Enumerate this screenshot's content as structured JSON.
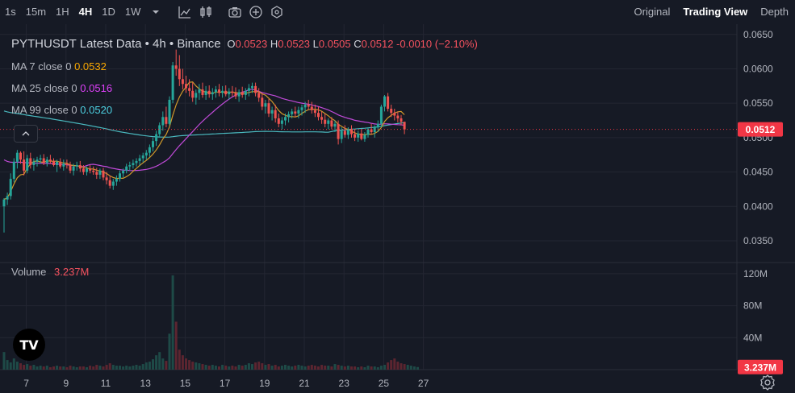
{
  "toolbar": {
    "timeframes": [
      "1s",
      "15m",
      "1H",
      "4H",
      "1D",
      "1W"
    ],
    "active_timeframe": "4H",
    "icons": [
      "chevron-down-icon",
      "line-chart-icon",
      "candlestick-icon",
      "camera-icon",
      "plus-circle-icon",
      "indicator-icon"
    ]
  },
  "views": {
    "tabs": [
      "Original",
      "Trading View",
      "Depth"
    ],
    "active": "Trading View"
  },
  "legend": {
    "symbol": "PYTHUSDT Latest Data",
    "interval": "4h",
    "exchange": "Binance",
    "open_label": "O",
    "open": "0.0523",
    "high_label": "H",
    "high": "0.0523",
    "low_label": "L",
    "low": "0.0505",
    "close_label": "C",
    "close": "0.0512",
    "change": "-0.0010 (−2.10%)",
    "ma": [
      {
        "label": "MA 7 close 0",
        "value": "0.0532",
        "color": "#f7a600"
      },
      {
        "label": "MA 25 close 0",
        "value": "0.0516",
        "color": "#e040fb"
      },
      {
        "label": "MA 99 close 0",
        "value": "0.0520",
        "color": "#4dd0e1"
      }
    ]
  },
  "volume_legend": {
    "label": "Volume",
    "value": "3.237M"
  },
  "colors": {
    "up": "#26a69a",
    "down": "#ef5350",
    "vol_up": "#1e4a47",
    "vol_down": "#5c2530",
    "price_tag": "#f23645",
    "grid": "#232632",
    "ma7": "#d19a2a",
    "ma25": "#c04ad8",
    "ma99": "#4ab9bf"
  },
  "chart_data": {
    "type": "candlestick",
    "price_axis_ticks": [
      "0.0650",
      "0.0600",
      "0.0550",
      "0.0500",
      "0.0450",
      "0.0400",
      "0.0350"
    ],
    "price_range": [
      0.0323,
      0.0665
    ],
    "volume_axis_ticks": [
      "120M",
      "80M",
      "40M"
    ],
    "volume_range": [
      0,
      130
    ],
    "x_ticks": [
      "7",
      "9",
      "11",
      "13",
      "15",
      "17",
      "19",
      "21",
      "23",
      "25",
      "27"
    ],
    "x_tick_index": [
      6,
      18,
      30,
      42,
      54,
      66,
      78,
      90,
      102,
      114,
      126
    ],
    "current_price_label": "0.0512",
    "current_volume_label": "3.237M",
    "current_price": 0.0512,
    "current_volume": 3.237,
    "candles_ohlc": [
      [
        0.04,
        0.0412,
        0.0362,
        0.041
      ],
      [
        0.041,
        0.042,
        0.0402,
        0.0415
      ],
      [
        0.0415,
        0.0448,
        0.041,
        0.044
      ],
      [
        0.044,
        0.047,
        0.0435,
        0.0465
      ],
      [
        0.0465,
        0.0482,
        0.0455,
        0.0478
      ],
      [
        0.0478,
        0.048,
        0.0462,
        0.0468
      ],
      [
        0.0468,
        0.048,
        0.0445,
        0.0452
      ],
      [
        0.0452,
        0.0475,
        0.0448,
        0.047
      ],
      [
        0.047,
        0.0478,
        0.0455,
        0.046
      ],
      [
        0.046,
        0.047,
        0.0452,
        0.0465
      ],
      [
        0.0465,
        0.0472,
        0.0458,
        0.0468
      ],
      [
        0.0468,
        0.0475,
        0.0462,
        0.047
      ],
      [
        0.047,
        0.0476,
        0.046,
        0.0463
      ],
      [
        0.0463,
        0.0472,
        0.0458,
        0.0468
      ],
      [
        0.0468,
        0.0475,
        0.0462,
        0.0466
      ],
      [
        0.0466,
        0.047,
        0.0458,
        0.046
      ],
      [
        0.046,
        0.0468,
        0.045,
        0.0465
      ],
      [
        0.0465,
        0.047,
        0.0455,
        0.0458
      ],
      [
        0.0458,
        0.0468,
        0.0452,
        0.0462
      ],
      [
        0.0462,
        0.0468,
        0.0455,
        0.046
      ],
      [
        0.046,
        0.0465,
        0.0448,
        0.0452
      ],
      [
        0.0452,
        0.0462,
        0.0445,
        0.0458
      ],
      [
        0.0458,
        0.0465,
        0.0452,
        0.046
      ],
      [
        0.046,
        0.0466,
        0.045,
        0.0455
      ],
      [
        0.0455,
        0.046,
        0.0446,
        0.045
      ],
      [
        0.045,
        0.0458,
        0.0445,
        0.0455
      ],
      [
        0.0455,
        0.046,
        0.0448,
        0.0452
      ],
      [
        0.0452,
        0.0458,
        0.0446,
        0.045
      ],
      [
        0.045,
        0.0456,
        0.044,
        0.0446
      ],
      [
        0.0446,
        0.0455,
        0.044,
        0.0452
      ],
      [
        0.0452,
        0.0456,
        0.0438,
        0.0442
      ],
      [
        0.0442,
        0.045,
        0.0432,
        0.0438
      ],
      [
        0.0438,
        0.0445,
        0.0426,
        0.043
      ],
      [
        0.043,
        0.044,
        0.0424,
        0.0436
      ],
      [
        0.0436,
        0.0445,
        0.043,
        0.044
      ],
      [
        0.044,
        0.0452,
        0.0436,
        0.0448
      ],
      [
        0.0448,
        0.0455,
        0.0442,
        0.0452
      ],
      [
        0.0452,
        0.0462,
        0.0448,
        0.0458
      ],
      [
        0.0458,
        0.0465,
        0.0452,
        0.046
      ],
      [
        0.046,
        0.0468,
        0.0455,
        0.0463
      ],
      [
        0.0463,
        0.047,
        0.0458,
        0.0466
      ],
      [
        0.0466,
        0.0475,
        0.046,
        0.047
      ],
      [
        0.047,
        0.0478,
        0.0464,
        0.0474
      ],
      [
        0.0474,
        0.0482,
        0.0468,
        0.0478
      ],
      [
        0.0478,
        0.049,
        0.0472,
        0.0486
      ],
      [
        0.0486,
        0.05,
        0.048,
        0.0495
      ],
      [
        0.0495,
        0.051,
        0.0488,
        0.0505
      ],
      [
        0.0505,
        0.0522,
        0.05,
        0.0518
      ],
      [
        0.0518,
        0.0538,
        0.051,
        0.053
      ],
      [
        0.053,
        0.0545,
        0.0515,
        0.052
      ],
      [
        0.052,
        0.056,
        0.0518,
        0.0555
      ],
      [
        0.0555,
        0.061,
        0.055,
        0.0605
      ],
      [
        0.0605,
        0.0628,
        0.059,
        0.06
      ],
      [
        0.06,
        0.062,
        0.0575,
        0.0585
      ],
      [
        0.0585,
        0.06,
        0.057,
        0.0578
      ],
      [
        0.0578,
        0.059,
        0.0565,
        0.0572
      ],
      [
        0.0572,
        0.0585,
        0.056,
        0.0568
      ],
      [
        0.0568,
        0.058,
        0.0552,
        0.0558
      ],
      [
        0.0558,
        0.057,
        0.0548,
        0.0565
      ],
      [
        0.0565,
        0.0578,
        0.0555,
        0.057
      ],
      [
        0.057,
        0.058,
        0.0558,
        0.0562
      ],
      [
        0.0562,
        0.0575,
        0.0555,
        0.0568
      ],
      [
        0.0568,
        0.0576,
        0.0558,
        0.0563
      ],
      [
        0.0563,
        0.0572,
        0.0555,
        0.0566
      ],
      [
        0.0566,
        0.0575,
        0.0558,
        0.057
      ],
      [
        0.057,
        0.0578,
        0.056,
        0.0565
      ],
      [
        0.0565,
        0.0575,
        0.0558,
        0.0568
      ],
      [
        0.0568,
        0.0576,
        0.056,
        0.0563
      ],
      [
        0.0563,
        0.0572,
        0.0555,
        0.0567
      ],
      [
        0.0567,
        0.0575,
        0.056,
        0.0565
      ],
      [
        0.0565,
        0.0573,
        0.0556,
        0.056
      ],
      [
        0.056,
        0.057,
        0.0552,
        0.0566
      ],
      [
        0.0566,
        0.0574,
        0.0558,
        0.0562
      ],
      [
        0.0562,
        0.0572,
        0.0555,
        0.0568
      ],
      [
        0.0568,
        0.0578,
        0.056,
        0.0572
      ],
      [
        0.0572,
        0.058,
        0.0565,
        0.0575
      ],
      [
        0.0575,
        0.058,
        0.056,
        0.0565
      ],
      [
        0.0565,
        0.0572,
        0.0552,
        0.0558
      ],
      [
        0.0558,
        0.0565,
        0.054,
        0.0545
      ],
      [
        0.0545,
        0.0555,
        0.0535,
        0.055
      ],
      [
        0.055,
        0.0556,
        0.053,
        0.0535
      ],
      [
        0.0535,
        0.0545,
        0.0525,
        0.054
      ],
      [
        0.054,
        0.0548,
        0.0522,
        0.0528
      ],
      [
        0.0528,
        0.0535,
        0.0515,
        0.052
      ],
      [
        0.052,
        0.053,
        0.0512,
        0.0525
      ],
      [
        0.0525,
        0.0535,
        0.0518,
        0.053
      ],
      [
        0.053,
        0.0538,
        0.0522,
        0.0534
      ],
      [
        0.0534,
        0.0542,
        0.0528,
        0.0538
      ],
      [
        0.0538,
        0.0545,
        0.053,
        0.0535
      ],
      [
        0.0535,
        0.0545,
        0.0528,
        0.054
      ],
      [
        0.054,
        0.0548,
        0.0532,
        0.0544
      ],
      [
        0.0544,
        0.0552,
        0.0536,
        0.0548
      ],
      [
        0.0548,
        0.0555,
        0.054,
        0.0545
      ],
      [
        0.0545,
        0.0552,
        0.0535,
        0.054
      ],
      [
        0.054,
        0.0548,
        0.053,
        0.0536
      ],
      [
        0.0536,
        0.0545,
        0.0525,
        0.053
      ],
      [
        0.053,
        0.0538,
        0.052,
        0.0526
      ],
      [
        0.0526,
        0.0535,
        0.0515,
        0.052
      ],
      [
        0.052,
        0.0528,
        0.0512,
        0.0525
      ],
      [
        0.0525,
        0.053,
        0.0512,
        0.0516
      ],
      [
        0.0516,
        0.0525,
        0.0508,
        0.052
      ],
      [
        0.052,
        0.0525,
        0.049,
        0.0498
      ],
      [
        0.0498,
        0.0515,
        0.0492,
        0.051
      ],
      [
        0.051,
        0.0518,
        0.05,
        0.0504
      ],
      [
        0.0504,
        0.0515,
        0.0498,
        0.0512
      ],
      [
        0.0512,
        0.0518,
        0.05,
        0.0505
      ],
      [
        0.0505,
        0.0512,
        0.0495,
        0.05
      ],
      [
        0.05,
        0.051,
        0.0494,
        0.0506
      ],
      [
        0.0506,
        0.0512,
        0.0496,
        0.0498
      ],
      [
        0.0498,
        0.0508,
        0.0494,
        0.0504
      ],
      [
        0.0504,
        0.0515,
        0.05,
        0.0512
      ],
      [
        0.0512,
        0.052,
        0.0505,
        0.0508
      ],
      [
        0.0508,
        0.0518,
        0.05,
        0.0515
      ],
      [
        0.0515,
        0.0525,
        0.0508,
        0.052
      ],
      [
        0.052,
        0.0548,
        0.0515,
        0.0545
      ],
      [
        0.0545,
        0.0562,
        0.0538,
        0.056
      ],
      [
        0.056,
        0.0565,
        0.0538,
        0.0542
      ],
      [
        0.0542,
        0.0548,
        0.053,
        0.0536
      ],
      [
        0.0536,
        0.0542,
        0.0525,
        0.0532
      ],
      [
        0.0532,
        0.0538,
        0.0522,
        0.0528
      ],
      [
        0.0528,
        0.0533,
        0.0518,
        0.0523
      ],
      [
        0.0523,
        0.0523,
        0.0505,
        0.0512
      ]
    ],
    "volumes_millions": [
      22,
      12,
      9,
      14,
      10,
      8,
      6,
      7,
      5,
      6,
      4,
      5,
      4,
      5,
      3,
      4,
      5,
      4,
      4,
      3,
      5,
      4,
      3,
      4,
      4,
      3,
      5,
      4,
      6,
      5,
      4,
      6,
      8,
      6,
      5,
      5,
      4,
      5,
      4,
      5,
      6,
      5,
      7,
      9,
      10,
      13,
      18,
      22,
      14,
      11,
      45,
      118,
      60,
      25,
      18,
      14,
      12,
      10,
      9,
      8,
      7,
      6,
      5,
      6,
      5,
      4,
      6,
      5,
      4,
      5,
      4,
      6,
      5,
      6,
      8,
      7,
      9,
      10,
      8,
      6,
      7,
      5,
      6,
      4,
      5,
      6,
      5,
      4,
      5,
      6,
      5,
      4,
      5,
      6,
      5,
      4,
      6,
      5,
      5,
      4,
      7,
      6,
      5,
      4,
      5,
      4,
      4,
      3,
      4,
      3,
      5,
      4,
      4,
      3,
      5,
      6,
      9,
      12,
      14,
      10,
      8,
      7,
      6,
      5,
      4,
      3.237
    ]
  }
}
